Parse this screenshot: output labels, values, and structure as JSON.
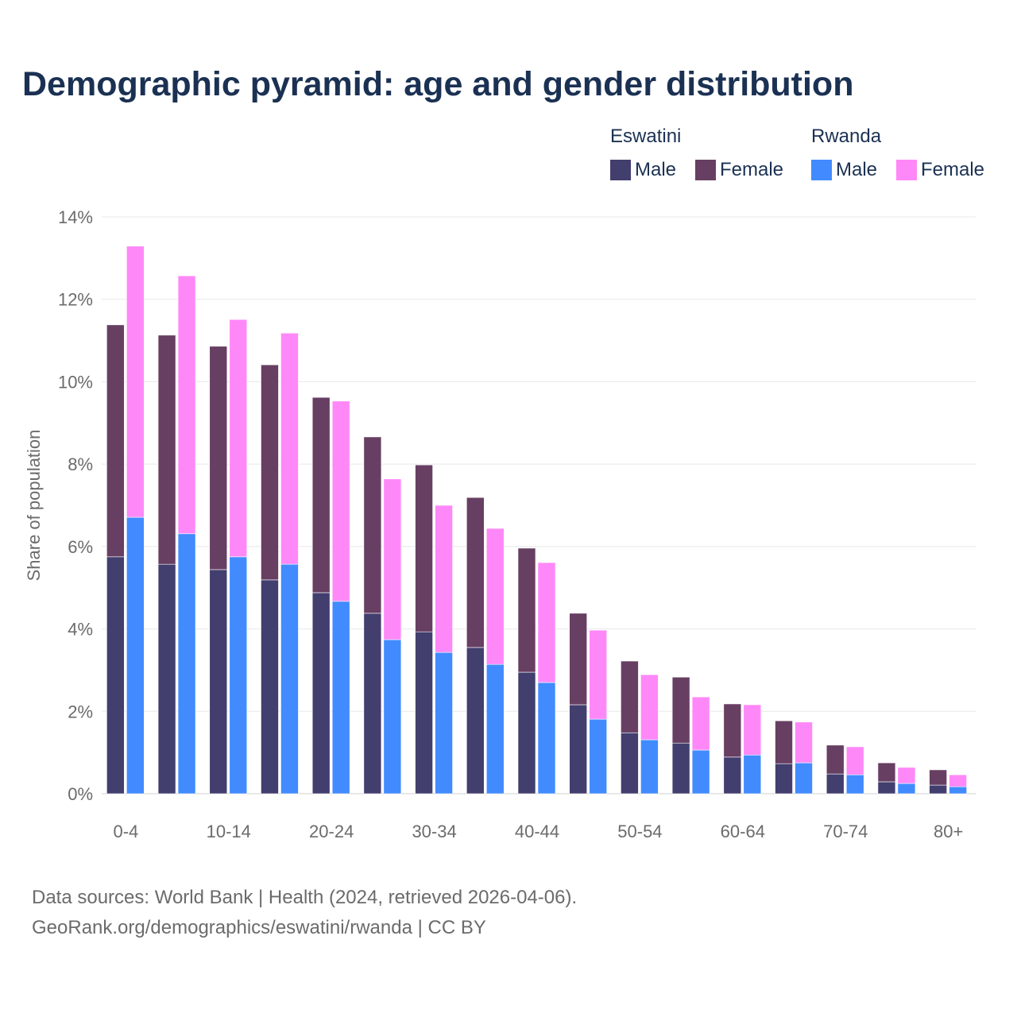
{
  "chart_data": {
    "type": "bar",
    "stacked": true,
    "title": "Demographic pyramid: age and gender distribution",
    "ylabel": "Share of population",
    "xlabel": "",
    "ylim": [
      0,
      14
    ],
    "yticks": [
      "0%",
      "2%",
      "4%",
      "6%",
      "8%",
      "10%",
      "12%",
      "14%"
    ],
    "ytick_values": [
      0,
      2,
      4,
      6,
      8,
      10,
      12,
      14
    ],
    "grid": true,
    "categories": [
      "0-4",
      "5-9",
      "10-14",
      "15-19",
      "20-24",
      "25-29",
      "30-34",
      "35-39",
      "40-44",
      "45-49",
      "50-54",
      "55-59",
      "60-64",
      "65-69",
      "70-74",
      "75-79",
      "80+"
    ],
    "xtick_labels": [
      "0-4",
      "",
      "10-14",
      "",
      "20-24",
      "",
      "30-34",
      "",
      "40-44",
      "",
      "50-54",
      "",
      "60-64",
      "",
      "70-74",
      "",
      "80+"
    ],
    "legend_placement": "top-right",
    "countries": [
      {
        "name": "Eswatini",
        "series": [
          {
            "name": "Male",
            "color": "#423e6e",
            "values": [
              5.75,
              5.57,
              5.44,
              5.19,
              4.88,
              4.38,
              3.93,
              3.55,
              2.95,
              2.16,
              1.48,
              1.23,
              0.89,
              0.73,
              0.48,
              0.29,
              0.21
            ]
          },
          {
            "name": "Female",
            "color": "#673f62",
            "values": [
              5.63,
              5.56,
              5.42,
              5.22,
              4.74,
              4.28,
              4.05,
              3.64,
              3.01,
              2.22,
              1.74,
              1.6,
              1.29,
              1.04,
              0.7,
              0.46,
              0.37
            ]
          }
        ]
      },
      {
        "name": "Rwanda",
        "series": [
          {
            "name": "Male",
            "color": "#418bff",
            "values": [
              6.71,
              6.31,
              5.75,
              5.57,
              4.67,
              3.74,
              3.43,
              3.14,
              2.7,
              1.81,
              1.31,
              1.06,
              0.94,
              0.75,
              0.46,
              0.25,
              0.17
            ]
          },
          {
            "name": "Female",
            "color": "#ff88f8",
            "values": [
              6.58,
              6.26,
              5.76,
              5.61,
              4.86,
              3.9,
              3.57,
              3.3,
              2.91,
              2.16,
              1.58,
              1.29,
              1.22,
              0.99,
              0.68,
              0.39,
              0.29
            ]
          }
        ]
      }
    ]
  },
  "footer": {
    "line1": "Data sources: World Bank | Health (2024, retrieved 2026-04-06).",
    "line2": "GeoRank.org/demographics/eswatini/rwanda | CC BY"
  }
}
